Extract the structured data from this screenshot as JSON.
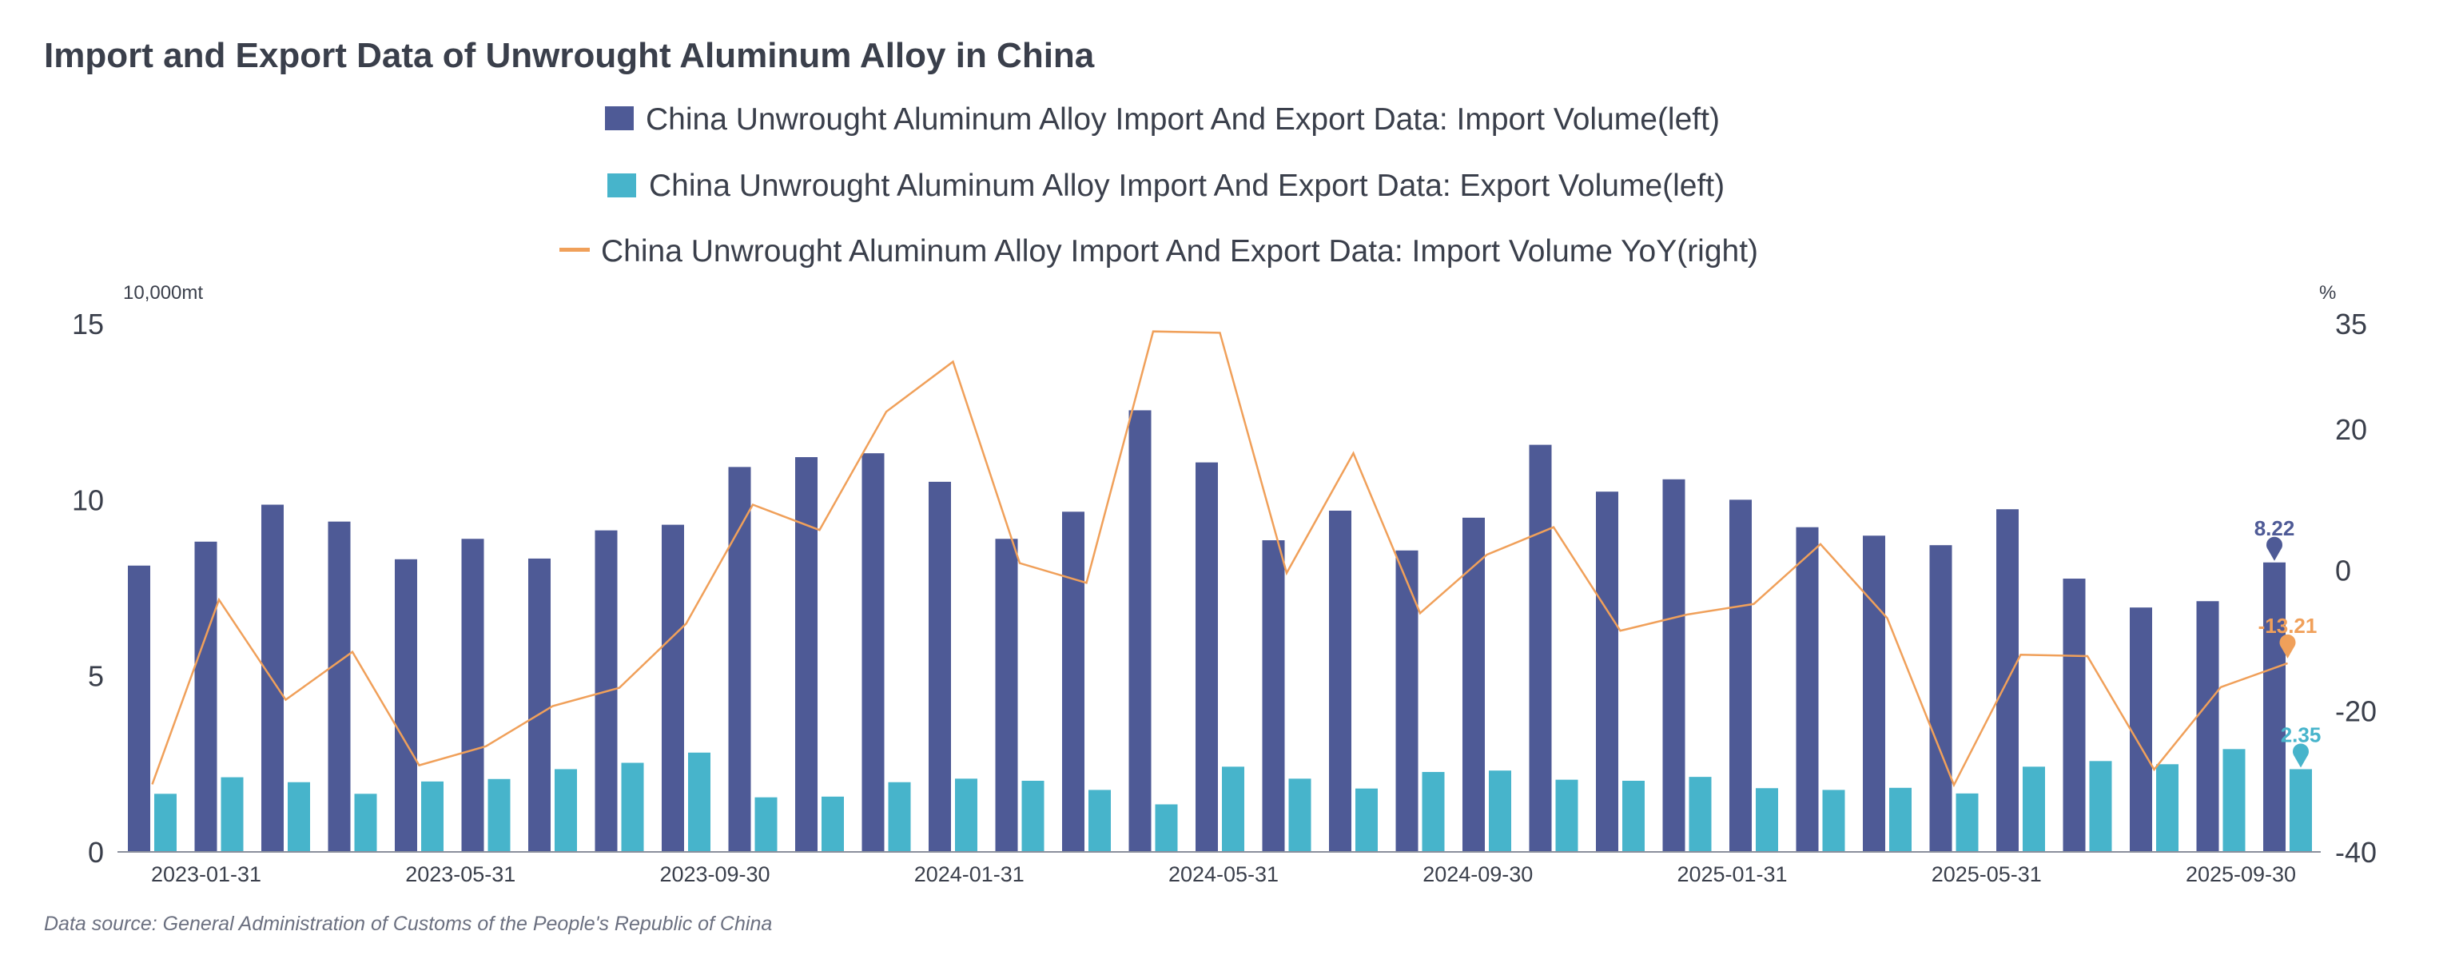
{
  "chart_data": {
    "type": "bar",
    "title": "Import and Export Data of Unwrought Aluminum Alloy in China",
    "left_unit": "10,000mt",
    "right_unit": "%",
    "ylim_left": [
      0,
      15
    ],
    "yticks_left": [
      "0",
      "5",
      "10",
      "15"
    ],
    "ylim_right": [
      -40,
      35
    ],
    "yticks_right": [
      "-40",
      "-20",
      "0",
      "20",
      "35"
    ],
    "xtick_labels": [
      "2023-01-31",
      "2023-05-31",
      "2023-09-30",
      "2024-01-31",
      "2024-05-31",
      "2024-09-30",
      "2025-01-31",
      "2025-05-31",
      "2025-09-30"
    ],
    "categories": [
      "2023-01",
      "2023-02",
      "2023-03",
      "2023-04",
      "2023-05",
      "2023-06",
      "2023-07",
      "2023-08",
      "2023-09",
      "2023-10",
      "2023-11",
      "2023-12",
      "2024-01",
      "2024-02",
      "2024-03",
      "2024-04",
      "2024-05",
      "2024-06",
      "2024-07",
      "2024-08",
      "2024-09",
      "2024-10",
      "2024-11",
      "2024-12",
      "2025-01",
      "2025-02",
      "2025-03",
      "2025-04",
      "2025-05",
      "2025-06",
      "2025-07",
      "2025-08",
      "2025-09"
    ],
    "series": [
      {
        "name": "China Unwrought Aluminum Alloy Import And Export Data: Import Volume(left)",
        "type": "bar",
        "axis": "left",
        "color": "#4e5a96",
        "values": [
          8.13,
          8.81,
          9.86,
          9.38,
          8.31,
          8.89,
          8.33,
          9.13,
          9.29,
          10.93,
          11.21,
          11.32,
          10.51,
          8.89,
          9.66,
          12.54,
          11.06,
          8.85,
          9.69,
          8.56,
          9.49,
          11.56,
          10.23,
          10.58,
          10.0,
          9.22,
          8.98,
          8.71,
          9.73,
          7.76,
          6.94,
          7.12,
          8.22
        ],
        "last_label": "8.22"
      },
      {
        "name": "China Unwrought Aluminum Alloy Import And Export Data: Export Volume(left)",
        "type": "bar",
        "axis": "left",
        "color": "#47b4cb",
        "values": [
          1.65,
          2.12,
          1.98,
          1.65,
          2.0,
          2.07,
          2.35,
          2.53,
          2.82,
          1.55,
          1.57,
          1.98,
          2.08,
          2.02,
          1.76,
          1.35,
          2.42,
          2.08,
          1.8,
          2.27,
          2.31,
          2.05,
          2.02,
          2.13,
          1.81,
          1.76,
          1.82,
          1.66,
          2.42,
          2.58,
          2.49,
          2.92,
          2.35
        ],
        "last_label": "2.35"
      },
      {
        "name": "China Unwrought Aluminum Alloy Import And Export Data: Import Volume YoY(right)",
        "type": "line",
        "axis": "right",
        "color": "#f0a05a",
        "values": [
          -30.4,
          -4.2,
          -18.4,
          -11.6,
          -27.7,
          -25.0,
          -19.3,
          -16.7,
          -7.6,
          9.3,
          5.7,
          22.5,
          29.6,
          1.0,
          -1.8,
          33.9,
          33.7,
          -0.4,
          16.6,
          -6.1,
          2.2,
          6.1,
          -8.6,
          -6.3,
          -4.8,
          3.7,
          -6.8,
          -30.5,
          -12.0,
          -12.2,
          -28.3,
          -16.6,
          -13.21
        ],
        "last_label": "-13.21"
      }
    ],
    "source": "Data source:  General Administration of Customs of the People's Republic of China"
  }
}
